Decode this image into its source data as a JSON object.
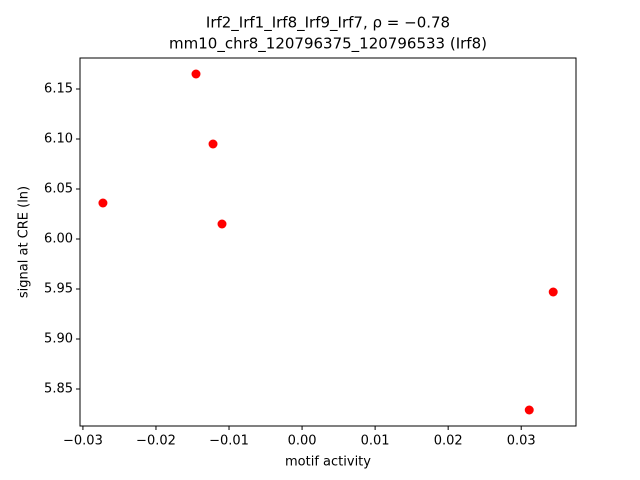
{
  "chart_data": {
    "type": "scatter",
    "title": "Irf2_Irf1_Irf8_Irf9_Irf7, ρ = −0.78",
    "subtitle": "mm10_chr8_120796375_120796533 (Irf8)",
    "x_label": "motif activity",
    "y_label": "signal at CRE (ln)",
    "series": [
      {
        "color": "#ff0000",
        "x": [
          -0.02726,
          -0.01452,
          -0.01219,
          -0.01096,
          0.03438,
          0.0311
        ],
        "values": [
          6.036,
          6.165,
          6.095,
          6.015,
          5.947,
          5.829
        ]
      }
    ],
    "xlim": [
      -0.0304,
      0.0375
    ],
    "ylim": [
      5.813,
      6.181
    ],
    "xticks": [
      {
        "value": -0.03,
        "label": "−0.03"
      },
      {
        "value": -0.02,
        "label": "−0.02"
      },
      {
        "value": -0.01,
        "label": "−0.01"
      },
      {
        "value": 0,
        "label": "0.00"
      },
      0.01,
      0.02,
      0.03
    ],
    "yticks": [
      5.85,
      {
        "value": 5.9,
        "label": "5.90"
      },
      5.95,
      {
        "value": 6.0,
        "label": "6.00"
      },
      6.05,
      {
        "value": 6.1,
        "label": "6.10"
      },
      6.15
    ]
  }
}
